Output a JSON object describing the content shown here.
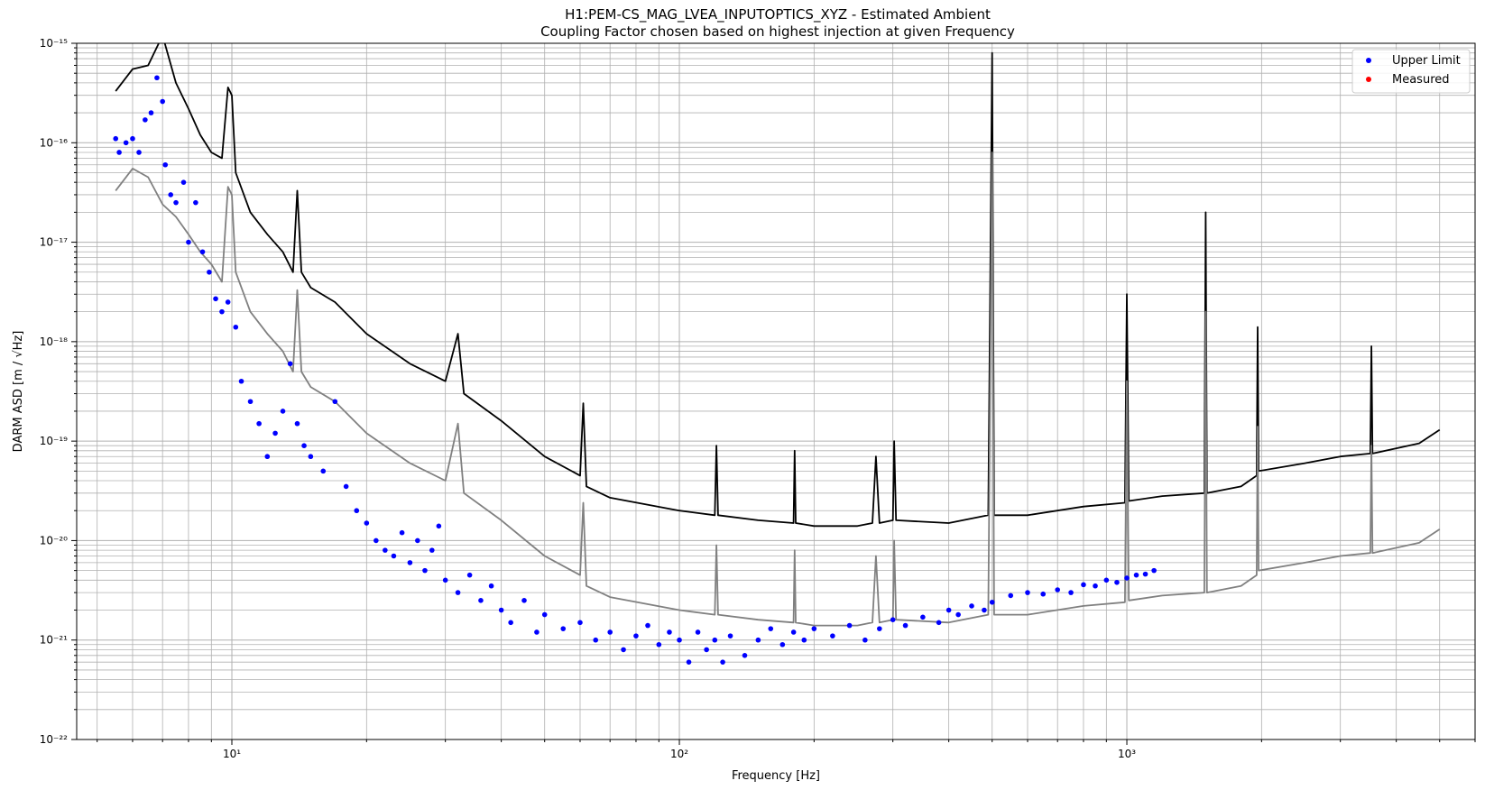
{
  "chart_data": {
    "type": "scatter",
    "title": "H1:PEM-CS_MAG_LVEA_INPUTOPTICS_XYZ - Estimated Ambient",
    "subtitle": "Coupling Factor chosen based on highest injection at given Frequency",
    "xlabel": "Frequency [Hz]",
    "ylabel": "DARM ASD [m / √Hz]",
    "xscale": "log",
    "yscale": "log",
    "xlim": [
      4.5,
      6000
    ],
    "ylim": [
      1e-22,
      1e-15
    ],
    "grid": true,
    "legend_position": "top-right",
    "x_tick_labels": [
      "10¹",
      "10²",
      "10³"
    ],
    "x_tick_values": [
      10,
      100,
      1000
    ],
    "y_tick_labels": [
      "10⁻²²",
      "10⁻²¹",
      "10⁻²⁰",
      "10⁻¹⁹",
      "10⁻¹⁸",
      "10⁻¹⁷",
      "10⁻¹⁶",
      "10⁻¹⁵"
    ],
    "y_tick_values": [
      1e-22,
      1e-21,
      1e-20,
      1e-19,
      1e-18,
      1e-17,
      1e-16,
      1e-15
    ],
    "legend": [
      {
        "label": "Upper Limit",
        "color": "#0000ff"
      },
      {
        "label": "Measured",
        "color": "#ff0000"
      }
    ],
    "series": [
      {
        "style": "line",
        "color": "#000000",
        "points": [
          [
            5.5,
            3.3e-16
          ],
          [
            6,
            5.5e-16
          ],
          [
            6.5,
            6e-16
          ],
          [
            7,
            1.2e-15
          ],
          [
            7.5,
            4e-16
          ],
          [
            8,
            2.2e-16
          ],
          [
            8.5,
            1.2e-16
          ],
          [
            9,
            8e-17
          ],
          [
            9.5,
            7e-17
          ],
          [
            9.8,
            3.6e-16
          ],
          [
            10,
            3e-16
          ],
          [
            10.2,
            5e-17
          ],
          [
            11,
            2e-17
          ],
          [
            12,
            1.2e-17
          ],
          [
            13,
            8e-18
          ],
          [
            13.7,
            5e-18
          ],
          [
            14,
            3.3e-17
          ],
          [
            14.3,
            5e-18
          ],
          [
            15,
            3.5e-18
          ],
          [
            17,
            2.5e-18
          ],
          [
            20,
            1.2e-18
          ],
          [
            25,
            6e-19
          ],
          [
            30,
            4e-19
          ],
          [
            32,
            1.2e-18
          ],
          [
            33,
            3e-19
          ],
          [
            40,
            1.6e-19
          ],
          [
            50,
            7e-20
          ],
          [
            60,
            4.5e-20
          ],
          [
            61,
            2.4e-19
          ],
          [
            62,
            3.5e-20
          ],
          [
            70,
            2.7e-20
          ],
          [
            100,
            2e-20
          ],
          [
            120,
            1.8e-20
          ],
          [
            121,
            9e-20
          ],
          [
            122,
            1.8e-20
          ],
          [
            150,
            1.6e-20
          ],
          [
            180,
            1.5e-20
          ],
          [
            181,
            8e-20
          ],
          [
            182,
            1.5e-20
          ],
          [
            200,
            1.4e-20
          ],
          [
            250,
            1.4e-20
          ],
          [
            270,
            1.5e-20
          ],
          [
            275,
            7e-20
          ],
          [
            280,
            1.5e-20
          ],
          [
            300,
            1.6e-20
          ],
          [
            302,
            1e-19
          ],
          [
            305,
            1.6e-20
          ],
          [
            400,
            1.5e-20
          ],
          [
            490,
            1.8e-20
          ],
          [
            500,
            8e-16
          ],
          [
            505,
            1.8e-20
          ],
          [
            600,
            1.8e-20
          ],
          [
            800,
            2.2e-20
          ],
          [
            990,
            2.4e-20
          ],
          [
            1000,
            3e-18
          ],
          [
            1010,
            2.5e-20
          ],
          [
            1200,
            2.8e-20
          ],
          [
            1490,
            3e-20
          ],
          [
            1500,
            2e-17
          ],
          [
            1510,
            3e-20
          ],
          [
            1800,
            3.5e-20
          ],
          [
            1950,
            4.5e-20
          ],
          [
            1960,
            1.4e-18
          ],
          [
            1970,
            5e-20
          ],
          [
            2500,
            6e-20
          ],
          [
            3000,
            7e-20
          ],
          [
            3500,
            7.5e-20
          ],
          [
            3520,
            9e-19
          ],
          [
            3540,
            7.5e-20
          ],
          [
            4500,
            9.5e-20
          ],
          [
            5000,
            1.3e-19
          ]
        ]
      },
      {
        "style": "line",
        "color": "#808080",
        "points": [
          [
            5.5,
            3.3e-17
          ],
          [
            6,
            5.5e-17
          ],
          [
            6.5,
            4.5e-17
          ],
          [
            7,
            2.4e-17
          ],
          [
            7.5,
            1.8e-17
          ],
          [
            8,
            1.2e-17
          ],
          [
            8.5,
            8e-18
          ],
          [
            9,
            6e-18
          ],
          [
            9.5,
            4e-18
          ],
          [
            9.8,
            3.6e-17
          ],
          [
            10,
            3e-17
          ],
          [
            10.2,
            5e-18
          ],
          [
            11,
            2e-18
          ],
          [
            12,
            1.2e-18
          ],
          [
            13,
            8e-19
          ],
          [
            13.7,
            5e-19
          ],
          [
            14,
            3.3e-18
          ],
          [
            14.3,
            5e-19
          ],
          [
            15,
            3.5e-19
          ],
          [
            17,
            2.5e-19
          ],
          [
            20,
            1.2e-19
          ],
          [
            25,
            6e-20
          ],
          [
            30,
            4e-20
          ],
          [
            32,
            1.5e-19
          ],
          [
            33,
            3e-20
          ],
          [
            40,
            1.6e-20
          ],
          [
            50,
            7e-21
          ],
          [
            60,
            4.5e-21
          ],
          [
            61,
            2.4e-20
          ],
          [
            62,
            3.5e-21
          ],
          [
            70,
            2.7e-21
          ],
          [
            100,
            2e-21
          ],
          [
            120,
            1.8e-21
          ],
          [
            121,
            9e-21
          ],
          [
            122,
            1.8e-21
          ],
          [
            150,
            1.6e-21
          ],
          [
            180,
            1.5e-21
          ],
          [
            181,
            8e-21
          ],
          [
            182,
            1.5e-21
          ],
          [
            200,
            1.4e-21
          ],
          [
            250,
            1.4e-21
          ],
          [
            270,
            1.5e-21
          ],
          [
            275,
            7e-21
          ],
          [
            280,
            1.5e-21
          ],
          [
            300,
            1.6e-21
          ],
          [
            302,
            1e-20
          ],
          [
            305,
            1.6e-21
          ],
          [
            400,
            1.5e-21
          ],
          [
            490,
            1.8e-21
          ],
          [
            500,
            8e-17
          ],
          [
            505,
            1.8e-21
          ],
          [
            600,
            1.8e-21
          ],
          [
            800,
            2.2e-21
          ],
          [
            990,
            2.4e-21
          ],
          [
            1000,
            4e-19
          ],
          [
            1010,
            2.5e-21
          ],
          [
            1200,
            2.8e-21
          ],
          [
            1490,
            3e-21
          ],
          [
            1500,
            2e-18
          ],
          [
            1510,
            3e-21
          ],
          [
            1800,
            3.5e-21
          ],
          [
            1950,
            4.5e-21
          ],
          [
            1960,
            1.4e-19
          ],
          [
            1970,
            5e-21
          ],
          [
            2500,
            6e-21
          ],
          [
            3000,
            7e-21
          ],
          [
            3500,
            7.5e-21
          ],
          [
            3520,
            9e-20
          ],
          [
            3540,
            7.5e-21
          ],
          [
            4500,
            9.5e-21
          ],
          [
            5000,
            1.3e-20
          ]
        ]
      },
      {
        "style": "scatter",
        "name": "Upper Limit",
        "color": "#0000ff",
        "points": [
          [
            5.5,
            1.1e-16
          ],
          [
            5.6,
            8e-17
          ],
          [
            5.8,
            1e-16
          ],
          [
            6,
            1.1e-16
          ],
          [
            6.2,
            8e-17
          ],
          [
            6.4,
            1.7e-16
          ],
          [
            6.6,
            2e-16
          ],
          [
            6.8,
            4.5e-16
          ],
          [
            7,
            2.6e-16
          ],
          [
            7.1,
            6e-17
          ],
          [
            7.3,
            3e-17
          ],
          [
            7.5,
            2.5e-17
          ],
          [
            7.8,
            4e-17
          ],
          [
            8,
            1e-17
          ],
          [
            8.3,
            2.5e-17
          ],
          [
            8.6,
            8e-18
          ],
          [
            8.9,
            5e-18
          ],
          [
            9.2,
            2.7e-18
          ],
          [
            9.5,
            2e-18
          ],
          [
            9.8,
            2.5e-18
          ],
          [
            10.2,
            1.4e-18
          ],
          [
            10.5,
            4e-19
          ],
          [
            11,
            2.5e-19
          ],
          [
            11.5,
            1.5e-19
          ],
          [
            12,
            7e-20
          ],
          [
            12.5,
            1.2e-19
          ],
          [
            13,
            2e-19
          ],
          [
            13.5,
            6e-19
          ],
          [
            14,
            1.5e-19
          ],
          [
            14.5,
            9e-20
          ],
          [
            15,
            7e-20
          ],
          [
            16,
            5e-20
          ],
          [
            17,
            2.5e-19
          ],
          [
            18,
            3.5e-20
          ],
          [
            19,
            2e-20
          ],
          [
            20,
            1.5e-20
          ],
          [
            21,
            1e-20
          ],
          [
            22,
            8e-21
          ],
          [
            23,
            7e-21
          ],
          [
            24,
            1.2e-20
          ],
          [
            25,
            6e-21
          ],
          [
            26,
            1e-20
          ],
          [
            27,
            5e-21
          ],
          [
            28,
            8e-21
          ],
          [
            29,
            1.4e-20
          ],
          [
            30,
            4e-21
          ],
          [
            32,
            3e-21
          ],
          [
            34,
            4.5e-21
          ],
          [
            36,
            2.5e-21
          ],
          [
            38,
            3.5e-21
          ],
          [
            40,
            2e-21
          ],
          [
            42,
            1.5e-21
          ],
          [
            45,
            2.5e-21
          ],
          [
            48,
            1.2e-21
          ],
          [
            50,
            1.8e-21
          ],
          [
            55,
            1.3e-21
          ],
          [
            60,
            1.5e-21
          ],
          [
            65,
            1e-21
          ],
          [
            70,
            1.2e-21
          ],
          [
            75,
            8e-22
          ],
          [
            80,
            1.1e-21
          ],
          [
            85,
            1.4e-21
          ],
          [
            90,
            9e-22
          ],
          [
            95,
            1.2e-21
          ],
          [
            100,
            1e-21
          ],
          [
            105,
            6e-22
          ],
          [
            110,
            1.2e-21
          ],
          [
            115,
            8e-22
          ],
          [
            120,
            1e-21
          ],
          [
            125,
            6e-22
          ],
          [
            130,
            1.1e-21
          ],
          [
            140,
            7e-22
          ],
          [
            150,
            1e-21
          ],
          [
            160,
            1.3e-21
          ],
          [
            170,
            9e-22
          ],
          [
            180,
            1.2e-21
          ],
          [
            190,
            1e-21
          ],
          [
            200,
            1.3e-21
          ],
          [
            220,
            1.1e-21
          ],
          [
            240,
            1.4e-21
          ],
          [
            260,
            1e-21
          ],
          [
            280,
            1.3e-21
          ],
          [
            300,
            1.6e-21
          ],
          [
            320,
            1.4e-21
          ],
          [
            350,
            1.7e-21
          ],
          [
            380,
            1.5e-21
          ],
          [
            400,
            2e-21
          ],
          [
            420,
            1.8e-21
          ],
          [
            450,
            2.2e-21
          ],
          [
            480,
            2e-21
          ],
          [
            500,
            2.4e-21
          ],
          [
            550,
            2.8e-21
          ],
          [
            600,
            3e-21
          ],
          [
            650,
            2.9e-21
          ],
          [
            700,
            3.2e-21
          ],
          [
            750,
            3e-21
          ],
          [
            800,
            3.6e-21
          ],
          [
            850,
            3.5e-21
          ],
          [
            900,
            4e-21
          ],
          [
            950,
            3.8e-21
          ],
          [
            1000,
            4.2e-21
          ],
          [
            1050,
            4.5e-21
          ],
          [
            1100,
            4.6e-21
          ],
          [
            1150,
            5e-21
          ]
        ]
      },
      {
        "style": "scatter",
        "name": "Measured",
        "color": "#ff0000",
        "points": []
      }
    ]
  }
}
